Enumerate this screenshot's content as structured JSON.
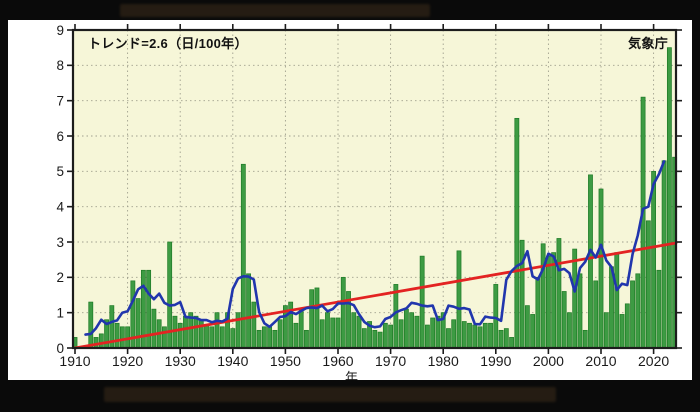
{
  "header": {
    "trend_label": "トレンド=2.6（日/100年）",
    "agency_label": "気象庁"
  },
  "axes": {
    "x_label": "年",
    "y_ticks": [
      0,
      1,
      2,
      3,
      4,
      5,
      6,
      7,
      8,
      9
    ],
    "x_ticks": [
      1910,
      1920,
      1930,
      1940,
      1950,
      1960,
      1970,
      1980,
      1990,
      2000,
      2010,
      2020
    ]
  },
  "colors": {
    "bar_fill": "#3d9b43",
    "bar_edge": "#1e7a26",
    "moving_average_line": "#2136ad",
    "trend_line": "#e32322",
    "plot_background": "#f6f6d8",
    "grid": "#a0a08e",
    "axis": "#1c1c1c",
    "label_text": "#1a1a1a"
  },
  "chart_data": {
    "type": "bar",
    "title": "",
    "x_start": 1910,
    "x_end": 2024,
    "values": [
      0.3,
      0,
      0,
      1.3,
      0.3,
      0.4,
      0.8,
      1.2,
      0.7,
      0.6,
      0.6,
      1.9,
      1.4,
      2.2,
      2.2,
      1.1,
      0.8,
      0.6,
      3.0,
      0.9,
      0.7,
      0.9,
      1.0,
      0.9,
      0.8,
      0.65,
      0.6,
      1.0,
      0.6,
      1.0,
      0.55,
      1.0,
      5.2,
      2.1,
      1.3,
      0.5,
      0.6,
      0.6,
      0.5,
      0.8,
      1.2,
      1.3,
      0.7,
      1.1,
      0.5,
      1.65,
      1.7,
      0.8,
      1.0,
      0.85,
      0.85,
      2.0,
      1.6,
      1.0,
      0.9,
      0.55,
      0.75,
      0.5,
      0.45,
      0.7,
      0.65,
      1.8,
      0.8,
      1.1,
      1.0,
      0.9,
      2.6,
      0.65,
      0.85,
      0.9,
      1.0,
      0.55,
      0.8,
      2.75,
      0.75,
      0.7,
      0.65,
      0.6,
      0.7,
      0.7,
      1.8,
      0.5,
      0.55,
      0.3,
      6.5,
      3.05,
      1.2,
      0.95,
      2.0,
      2.95,
      2.6,
      2.7,
      3.1,
      1.6,
      1.0,
      2.8,
      2.1,
      0.5,
      4.9,
      1.9,
      4.5,
      1.0,
      2.3,
      2.7,
      0.95,
      1.25,
      1.9,
      2.1,
      7.1,
      3.6,
      5.0,
      2.2,
      5.3,
      8.5,
      5.4
    ],
    "overlays": [
      {
        "name": "5-year moving average",
        "type": "line",
        "color": "#2136ad",
        "derivation": "centered 5-year mean of values"
      },
      {
        "name": "linear trend",
        "type": "line",
        "color": "#e32322",
        "slope_per_100yr": 2.6,
        "start_value": 0
      }
    ],
    "annotations": [
      "トレンド=2.6（日/100年）",
      "気象庁"
    ],
    "xlabel": "年",
    "ylabel": "",
    "ylim": [
      0,
      9
    ],
    "xlim": [
      1910,
      2025
    ],
    "grid": "dotted",
    "legend": "none"
  }
}
